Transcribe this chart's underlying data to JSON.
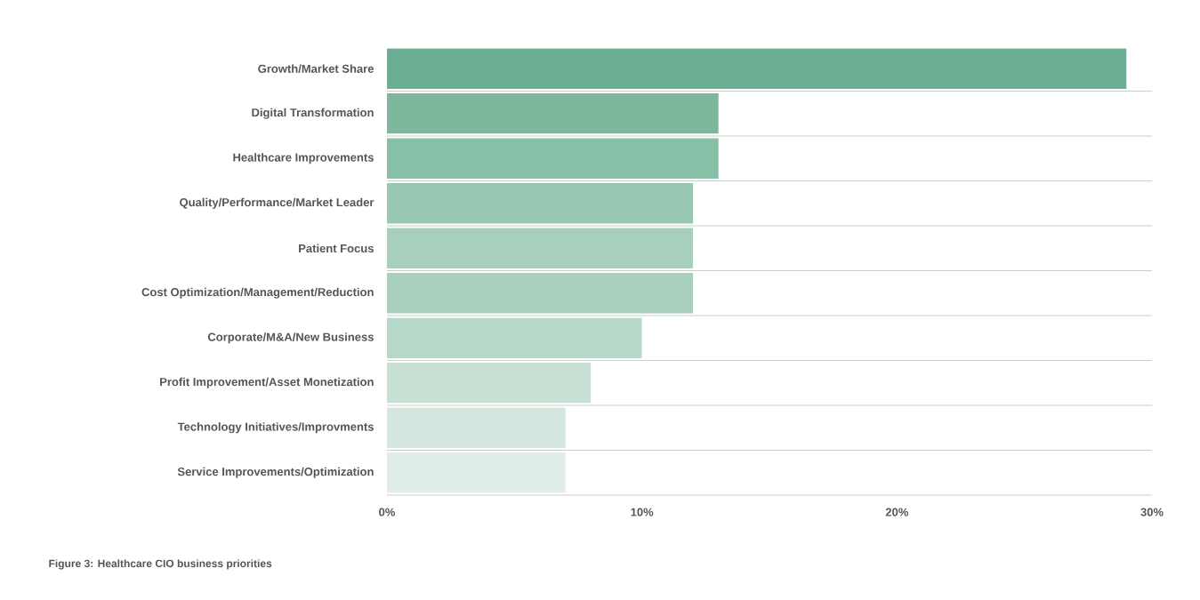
{
  "chart_data": {
    "type": "bar",
    "orientation": "horizontal",
    "categories": [
      "Growth/Market Share",
      "Digital Transformation",
      "Healthcare Improvements",
      "Quality/Performance/Market Leader",
      "Patient Focus",
      "Cost Optimization/Management/Reduction",
      "Corporate/M&A/New Business",
      "Profit Improvement/Asset Monetization",
      "Technology Initiatives/Improvments",
      "Service Improvements/Optimization"
    ],
    "values": [
      29,
      13,
      13,
      12,
      12,
      12,
      10,
      8,
      7,
      7
    ],
    "colors": [
      "#6aaf94",
      "#7db89d",
      "#88bfa7",
      "#98c7b2",
      "#a6cfbd",
      "#a9d0bf",
      "#b6d8c9",
      "#c6e0d4",
      "#d4e7de",
      "#e1eee8"
    ],
    "xlim": [
      0,
      30
    ],
    "xticks": [
      {
        "value": 0,
        "label": "0%"
      },
      {
        "value": 10,
        "label": "10%"
      },
      {
        "value": 20,
        "label": "20%"
      },
      {
        "value": 30,
        "label": "30%"
      }
    ],
    "grid": "y",
    "annotations": [
      "Figure 3: Healthcare CIO business priorities"
    ]
  }
}
